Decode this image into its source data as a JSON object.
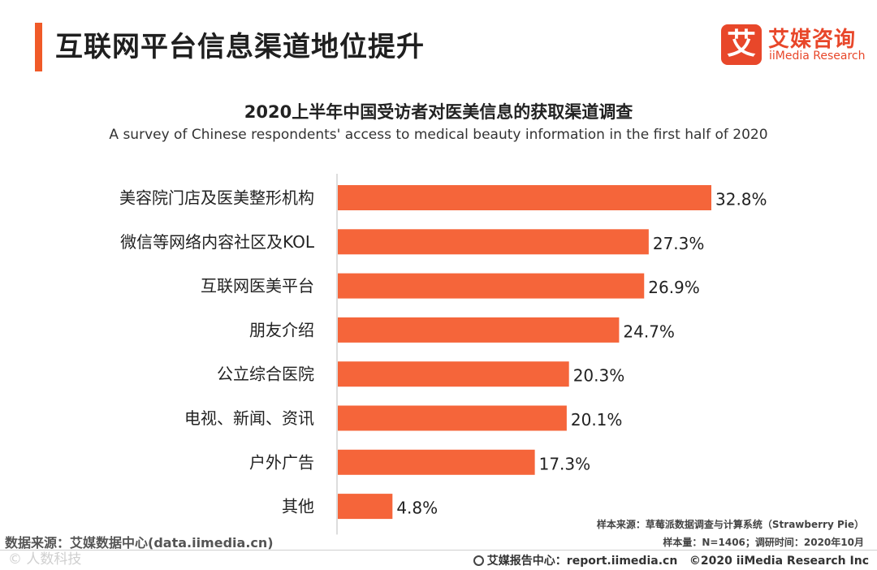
{
  "header": {
    "page_title": "互联网平台信息渠道地位提升",
    "logo_mark": "艾",
    "logo_cn": "艾媒咨询",
    "logo_en": "iiMedia Research"
  },
  "colors": {
    "accent": "#f05a28",
    "bar": "#f5653a",
    "logo": "#e8472a"
  },
  "chart_data": {
    "type": "bar",
    "orientation": "horizontal",
    "title": "2020上半年中国受访者对医美信息的获取渠道调查",
    "subtitle": "A survey of Chinese respondents' access to medical beauty information in the first half of 2020",
    "categories": [
      "美容院门店及医美整形机构",
      "微信等网络内容社区及KOL",
      "互联网医美平台",
      "朋友介绍",
      "公立综合医院",
      "电视、新闻、资讯",
      "户外广告",
      "其他"
    ],
    "values": [
      32.8,
      27.3,
      26.9,
      24.7,
      20.3,
      20.1,
      17.3,
      4.8
    ],
    "value_suffix": "%",
    "xlim": [
      0,
      35
    ],
    "grid": false,
    "legend": "none"
  },
  "notes": {
    "sample_source": "样本来源：草莓派数据调查与计算系统（Strawberry Pie）",
    "sample_size": "样本量：N=1406；调研时间：2020年10月"
  },
  "source": "数据来源：艾媒数据中心(data.iimedia.cn)",
  "watermark": "©  人数科技",
  "footer": {
    "report_center": "艾媒报告中心：report.iimedia.cn",
    "copyright": "©2020  iiMedia Research  Inc"
  }
}
